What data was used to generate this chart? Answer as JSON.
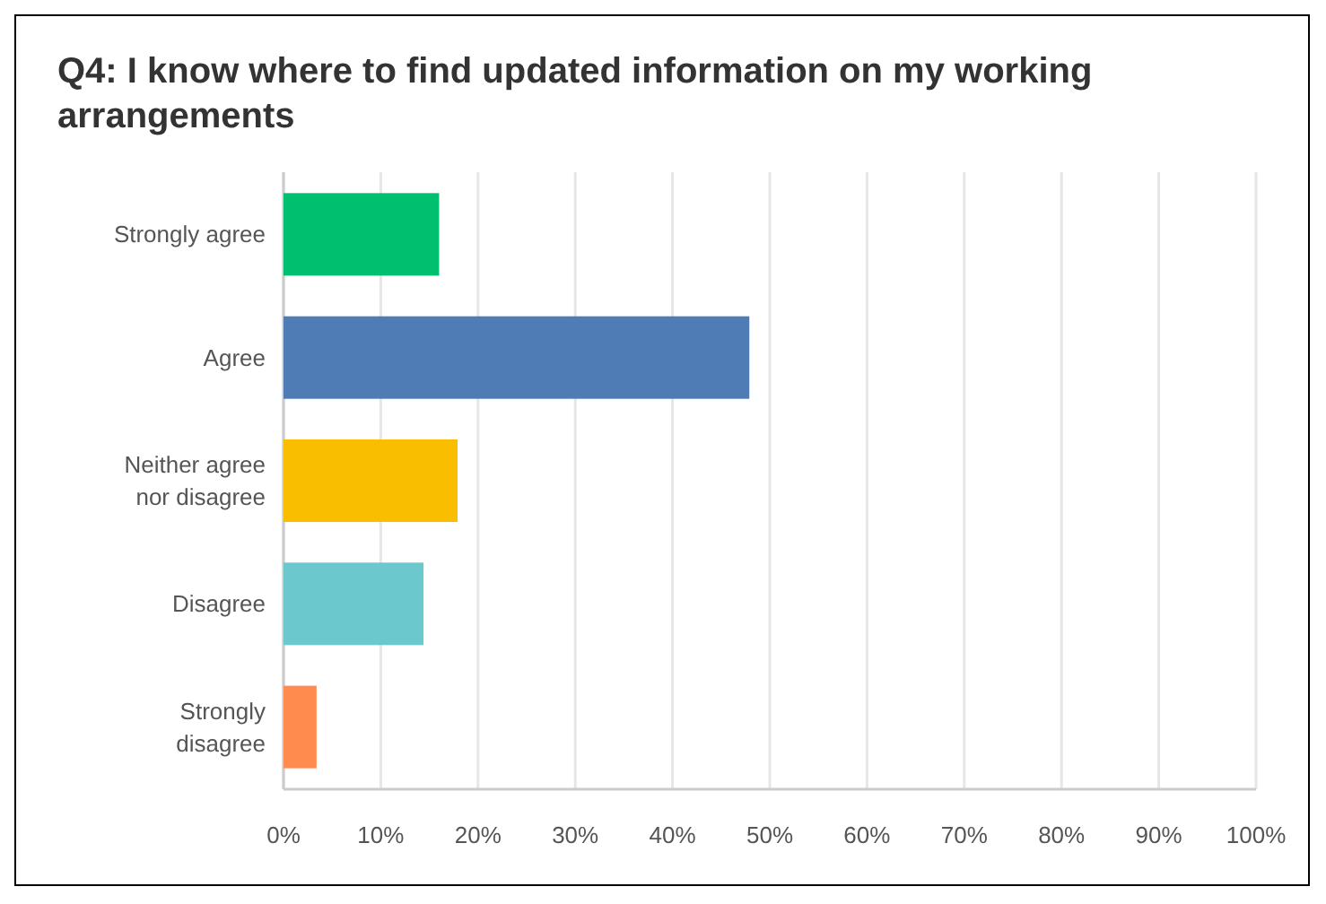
{
  "chart_data": {
    "type": "bar",
    "orientation": "horizontal",
    "title": "Q4: I know where to find updated information on my working arrangements",
    "categories": [
      "Strongly agree",
      "Agree",
      "Neither agree nor disagree",
      "Disagree",
      "Strongly disagree"
    ],
    "values": [
      16.0,
      47.9,
      17.9,
      14.4,
      3.4
    ],
    "colors": [
      "#00bf6f",
      "#507cb6",
      "#f9be00",
      "#6bc8cd",
      "#ff8b4f"
    ],
    "xlim": [
      0,
      100
    ],
    "xticks": [
      {
        "value": 0,
        "label": "0%"
      },
      {
        "value": 10,
        "label": "10%"
      },
      {
        "value": 20,
        "label": "20%"
      },
      {
        "value": 30,
        "label": "30%"
      },
      {
        "value": 40,
        "label": "40%"
      },
      {
        "value": 50,
        "label": "50%"
      },
      {
        "value": 60,
        "label": "60%"
      },
      {
        "value": 70,
        "label": "70%"
      },
      {
        "value": 80,
        "label": "80%"
      },
      {
        "value": 90,
        "label": "90%"
      },
      {
        "value": 100,
        "label": "100%"
      }
    ],
    "grid": "x"
  }
}
